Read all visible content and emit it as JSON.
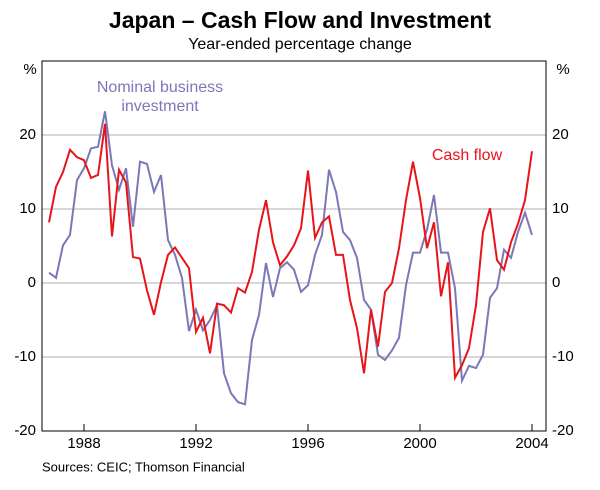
{
  "chart_data": {
    "type": "line",
    "title": "Japan – Cash Flow and Investment",
    "subtitle": "Year-ended percentage change",
    "y_label": "%",
    "y2_label": "%",
    "source": "Sources: CEIC; Thomson Financial",
    "x": [
      1986.75,
      1987,
      1987.25,
      1987.5,
      1987.75,
      1988,
      1988.25,
      1988.5,
      1988.75,
      1989,
      1989.25,
      1989.5,
      1989.75,
      1990,
      1990.25,
      1990.5,
      1990.75,
      1991,
      1991.25,
      1991.5,
      1991.75,
      1992,
      1992.25,
      1992.5,
      1992.75,
      1993,
      1993.25,
      1993.5,
      1993.75,
      1994,
      1994.25,
      1994.5,
      1994.75,
      1995,
      1995.25,
      1995.5,
      1995.75,
      1996,
      1996.25,
      1996.5,
      1996.75,
      1997,
      1997.25,
      1997.5,
      1997.75,
      1998,
      1998.25,
      1998.5,
      1998.75,
      1999,
      1999.25,
      1999.5,
      1999.75,
      2000,
      2000.25,
      2000.5,
      2000.75,
      2001,
      2001.25,
      2001.5,
      2001.75,
      2002,
      2002.25,
      2002.5,
      2002.75,
      2003,
      2003.25,
      2003.5,
      2003.75,
      2004
    ],
    "series": [
      {
        "name": "Nominal business investment",
        "color": "#7b78b8",
        "values": [
          1.4,
          0.7,
          5.1,
          6.5,
          13.9,
          15.5,
          18.2,
          18.4,
          23.2,
          15.9,
          12.6,
          15.5,
          7.6,
          16.4,
          16.1,
          12.3,
          14.6,
          5.8,
          3.8,
          0.7,
          -6.5,
          -3.6,
          -6.4,
          -5,
          -3,
          -12.2,
          -14.9,
          -16.1,
          -16.4,
          -7.7,
          -4.3,
          2.7,
          -1.9,
          2,
          2.8,
          1.8,
          -1.2,
          -0.3,
          3.8,
          6.5,
          15.3,
          12.3,
          6.9,
          5.8,
          3.4,
          -2.3,
          -3.6,
          -9.7,
          -10.4,
          -9.1,
          -7.4,
          -0.3,
          4.1,
          4.1,
          7.2,
          11.9,
          4.1,
          4.1,
          -0.7,
          -13.2,
          -11.2,
          -11.5,
          -9.7,
          -2,
          -0.7,
          4.5,
          3.4,
          6.9,
          9.5,
          6.5
        ]
      },
      {
        "name": "Cash flow",
        "color": "#e8141c",
        "values": [
          8.2,
          13,
          15,
          18,
          17,
          16.6,
          14.2,
          14.6,
          21.5,
          6.3,
          15.3,
          13.6,
          3.5,
          3.3,
          -1,
          -4.3,
          0.1,
          3.8,
          4.8,
          3.4,
          2,
          -6.6,
          -4.7,
          -9.5,
          -2.8,
          -3,
          -4,
          -0.7,
          -1.3,
          1.5,
          7.2,
          11.2,
          5.5,
          2.4,
          3.6,
          5.1,
          7.4,
          15.2,
          6.1,
          8.2,
          9,
          3.8,
          3.8,
          -2.3,
          -6.1,
          -12.2,
          -3.6,
          -8.6,
          -1.2,
          0,
          4.7,
          11.2,
          16.4,
          11.5,
          4.7,
          8.2,
          -1.8,
          2.8,
          -12.8,
          -11.1,
          -8.8,
          -3,
          6.9,
          10.1,
          3.1,
          1.8,
          5.5,
          8,
          11.2,
          17.8
        ]
      }
    ],
    "xlim": [
      1986.5,
      2004.5
    ],
    "xticks": [
      1988,
      1992,
      1996,
      2000,
      2004
    ],
    "ylim": [
      -20,
      30
    ],
    "yticks": [
      -20,
      -10,
      0,
      10,
      20
    ],
    "y2lim": [
      -20,
      30
    ],
    "y2ticks": [
      -20,
      -10,
      0,
      10,
      20
    ],
    "grid": true
  }
}
